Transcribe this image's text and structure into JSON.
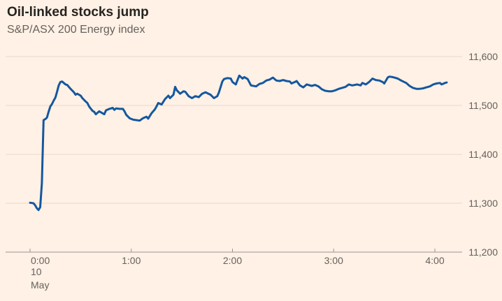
{
  "title": "Oil-linked stocks jump",
  "subtitle": "S&P/ASX 200 Energy index",
  "colors": {
    "background": "#FFF1E5",
    "line": "#15579E",
    "title_text": "#262320",
    "secondary_text": "#66605C",
    "gridline": "#E9D9CA",
    "axis_line": "#9B948E"
  },
  "chart_data": {
    "type": "line",
    "title": "Oil-linked stocks jump",
    "subtitle": "S&P/ASX 200 Energy index",
    "xlabel": "",
    "ylabel": "",
    "grid": "horizontal",
    "legend": "none",
    "y_axis": {
      "position": "right",
      "range": [
        11200,
        11600
      ],
      "ticks": [
        {
          "value": 11200,
          "label": "11,200"
        },
        {
          "value": 11300,
          "label": "11,300"
        },
        {
          "value": 11400,
          "label": "11,400"
        },
        {
          "value": 11500,
          "label": "11,500"
        },
        {
          "value": 11600,
          "label": "11,600"
        }
      ]
    },
    "x_axis": {
      "unit": "hours elapsed",
      "ticks": [
        {
          "hour": 0,
          "label": "0:00"
        },
        {
          "hour": 1,
          "label": "1:00"
        },
        {
          "hour": 2,
          "label": "2:00"
        },
        {
          "hour": 3,
          "label": "3:00"
        },
        {
          "hour": 4,
          "label": "4:00"
        }
      ],
      "date_lines": [
        "10",
        "May"
      ]
    },
    "series": [
      {
        "name": "S&P/ASX 200 Energy index",
        "color": "#15579E",
        "points_format": [
          "minutes_from_0:00",
          "index_value"
        ],
        "points": [
          [
            0,
            11301
          ],
          [
            2,
            11300
          ],
          [
            3,
            11296
          ],
          [
            4,
            11290
          ],
          [
            5,
            11286
          ],
          [
            6,
            11292
          ],
          [
            7,
            11341
          ],
          [
            8,
            11470
          ],
          [
            9,
            11472
          ],
          [
            10,
            11475
          ],
          [
            11,
            11487
          ],
          [
            12,
            11498
          ],
          [
            13,
            11503
          ],
          [
            14,
            11510
          ],
          [
            15,
            11516
          ],
          [
            16,
            11528
          ],
          [
            17,
            11541
          ],
          [
            18,
            11548
          ],
          [
            19,
            11549
          ],
          [
            20,
            11546
          ],
          [
            21,
            11543
          ],
          [
            22,
            11542
          ],
          [
            24,
            11534
          ],
          [
            26,
            11527
          ],
          [
            27,
            11522
          ],
          [
            28,
            11524
          ],
          [
            30,
            11520
          ],
          [
            31,
            11515
          ],
          [
            33,
            11508
          ],
          [
            34,
            11505
          ],
          [
            35,
            11498
          ],
          [
            37,
            11489
          ],
          [
            38,
            11487
          ],
          [
            39,
            11482
          ],
          [
            41,
            11488
          ],
          [
            42,
            11486
          ],
          [
            44,
            11482
          ],
          [
            45,
            11490
          ],
          [
            47,
            11493
          ],
          [
            49,
            11495
          ],
          [
            50,
            11491
          ],
          [
            51,
            11494
          ],
          [
            53,
            11493
          ],
          [
            55,
            11493
          ],
          [
            56,
            11488
          ],
          [
            57,
            11481
          ],
          [
            59,
            11474
          ],
          [
            61,
            11471
          ],
          [
            63,
            11470
          ],
          [
            65,
            11469
          ],
          [
            67,
            11474
          ],
          [
            69,
            11477
          ],
          [
            70,
            11473
          ],
          [
            72,
            11484
          ],
          [
            74,
            11492
          ],
          [
            75,
            11498
          ],
          [
            76,
            11505
          ],
          [
            78,
            11502
          ],
          [
            80,
            11513
          ],
          [
            82,
            11520
          ],
          [
            83,
            11515
          ],
          [
            85,
            11522
          ],
          [
            86,
            11538
          ],
          [
            87,
            11531
          ],
          [
            89,
            11524
          ],
          [
            91,
            11529
          ],
          [
            92,
            11528
          ],
          [
            94,
            11519
          ],
          [
            96,
            11515
          ],
          [
            98,
            11519
          ],
          [
            100,
            11517
          ],
          [
            102,
            11524
          ],
          [
            104,
            11527
          ],
          [
            107,
            11522
          ],
          [
            109,
            11515
          ],
          [
            111,
            11519
          ],
          [
            112,
            11527
          ],
          [
            114,
            11549
          ],
          [
            115,
            11554
          ],
          [
            117,
            11556
          ],
          [
            119,
            11555
          ],
          [
            120,
            11548
          ],
          [
            122,
            11543
          ],
          [
            123,
            11552
          ],
          [
            124,
            11561
          ],
          [
            126,
            11555
          ],
          [
            127,
            11558
          ],
          [
            129,
            11554
          ],
          [
            131,
            11541
          ],
          [
            134,
            11539
          ],
          [
            136,
            11544
          ],
          [
            138,
            11546
          ],
          [
            140,
            11551
          ],
          [
            142,
            11553
          ],
          [
            144,
            11557
          ],
          [
            146,
            11551
          ],
          [
            148,
            11550
          ],
          [
            150,
            11552
          ],
          [
            152,
            11550
          ],
          [
            154,
            11549
          ],
          [
            155,
            11545
          ],
          [
            157,
            11548
          ],
          [
            158,
            11550
          ],
          [
            160,
            11541
          ],
          [
            162,
            11537
          ],
          [
            164,
            11543
          ],
          [
            167,
            11540
          ],
          [
            169,
            11542
          ],
          [
            171,
            11539
          ],
          [
            173,
            11533
          ],
          [
            175,
            11530
          ],
          [
            177,
            11529
          ],
          [
            179,
            11529
          ],
          [
            181,
            11531
          ],
          [
            183,
            11534
          ],
          [
            185,
            11536
          ],
          [
            187,
            11538
          ],
          [
            189,
            11543
          ],
          [
            191,
            11541
          ],
          [
            194,
            11543
          ],
          [
            196,
            11541
          ],
          [
            197,
            11546
          ],
          [
            199,
            11543
          ],
          [
            201,
            11548
          ],
          [
            203,
            11555
          ],
          [
            205,
            11552
          ],
          [
            207,
            11551
          ],
          [
            209,
            11548
          ],
          [
            210,
            11545
          ],
          [
            212,
            11557
          ],
          [
            213,
            11559
          ],
          [
            215,
            11558
          ],
          [
            216,
            11557
          ],
          [
            218,
            11555
          ],
          [
            220,
            11551
          ],
          [
            223,
            11546
          ],
          [
            225,
            11540
          ],
          [
            227,
            11536
          ],
          [
            229,
            11534
          ],
          [
            231,
            11534
          ],
          [
            233,
            11535
          ],
          [
            235,
            11537
          ],
          [
            237,
            11539
          ],
          [
            239,
            11543
          ],
          [
            241,
            11545
          ],
          [
            243,
            11546
          ],
          [
            244,
            11543
          ],
          [
            246,
            11546
          ],
          [
            247,
            11547
          ]
        ]
      }
    ]
  }
}
